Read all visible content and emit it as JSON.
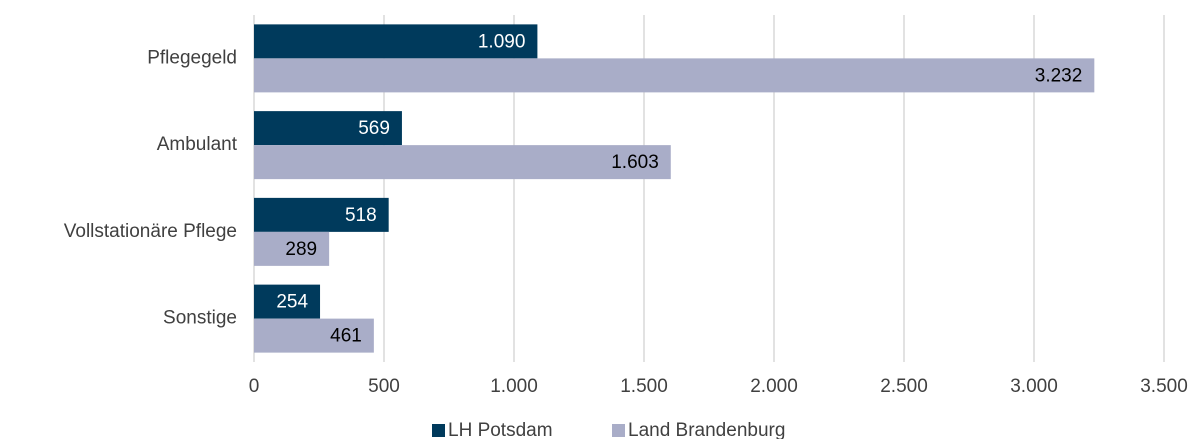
{
  "chart_data": {
    "type": "bar",
    "orientation": "horizontal",
    "categories": [
      "Pflegegeld",
      "Ambulant",
      "Vollstationäre Pflege",
      "Sonstige"
    ],
    "series": [
      {
        "name": "LH Potsdam",
        "color": "#003a5c",
        "values": [
          1090,
          569,
          518,
          254
        ],
        "value_labels": [
          "1.090",
          "569",
          "518",
          "254"
        ]
      },
      {
        "name": "Land Brandenburg",
        "color": "#a9adc8",
        "values": [
          3232,
          1603,
          289,
          461
        ],
        "value_labels": [
          "3.232",
          "1.603",
          "289",
          "461"
        ]
      }
    ],
    "xlim": [
      0,
      3500
    ],
    "xticks": [
      0,
      500,
      {
        "value": 1000,
        "label": "1.000"
      },
      {
        "value": 1500,
        "label": "1.500"
      },
      {
        "value": 2000,
        "label": "2.000"
      },
      {
        "value": 2500,
        "label": "2.500"
      },
      {
        "value": 3000,
        "label": "3.000"
      },
      {
        "value": 3500,
        "label": "3.500"
      }
    ],
    "grid": true,
    "legend": "bottom"
  }
}
